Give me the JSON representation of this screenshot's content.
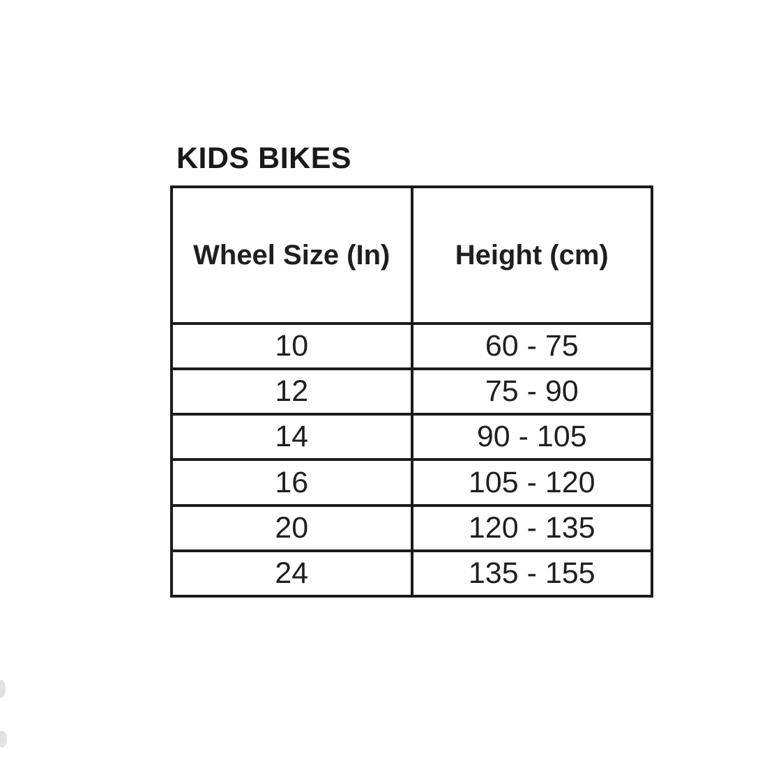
{
  "title": "KIDS BIKES",
  "chart_data": {
    "type": "table",
    "title": "KIDS BIKES",
    "columns": [
      "Wheel Size (In)",
      "Height (cm)"
    ],
    "rows": [
      [
        "10",
        "60 - 75"
      ],
      [
        "12",
        "75 - 90"
      ],
      [
        "14",
        "90 - 105"
      ],
      [
        "16",
        "105 - 120"
      ],
      [
        "20",
        "120 - 135"
      ],
      [
        "24",
        "135 - 155"
      ]
    ],
    "layout": {
      "grid": "all-borders",
      "header_position": "top",
      "alignment": "center"
    }
  },
  "colors": {
    "background": "#ffffff",
    "border": "#1b1b1b",
    "text": "#1f1f1f"
  }
}
